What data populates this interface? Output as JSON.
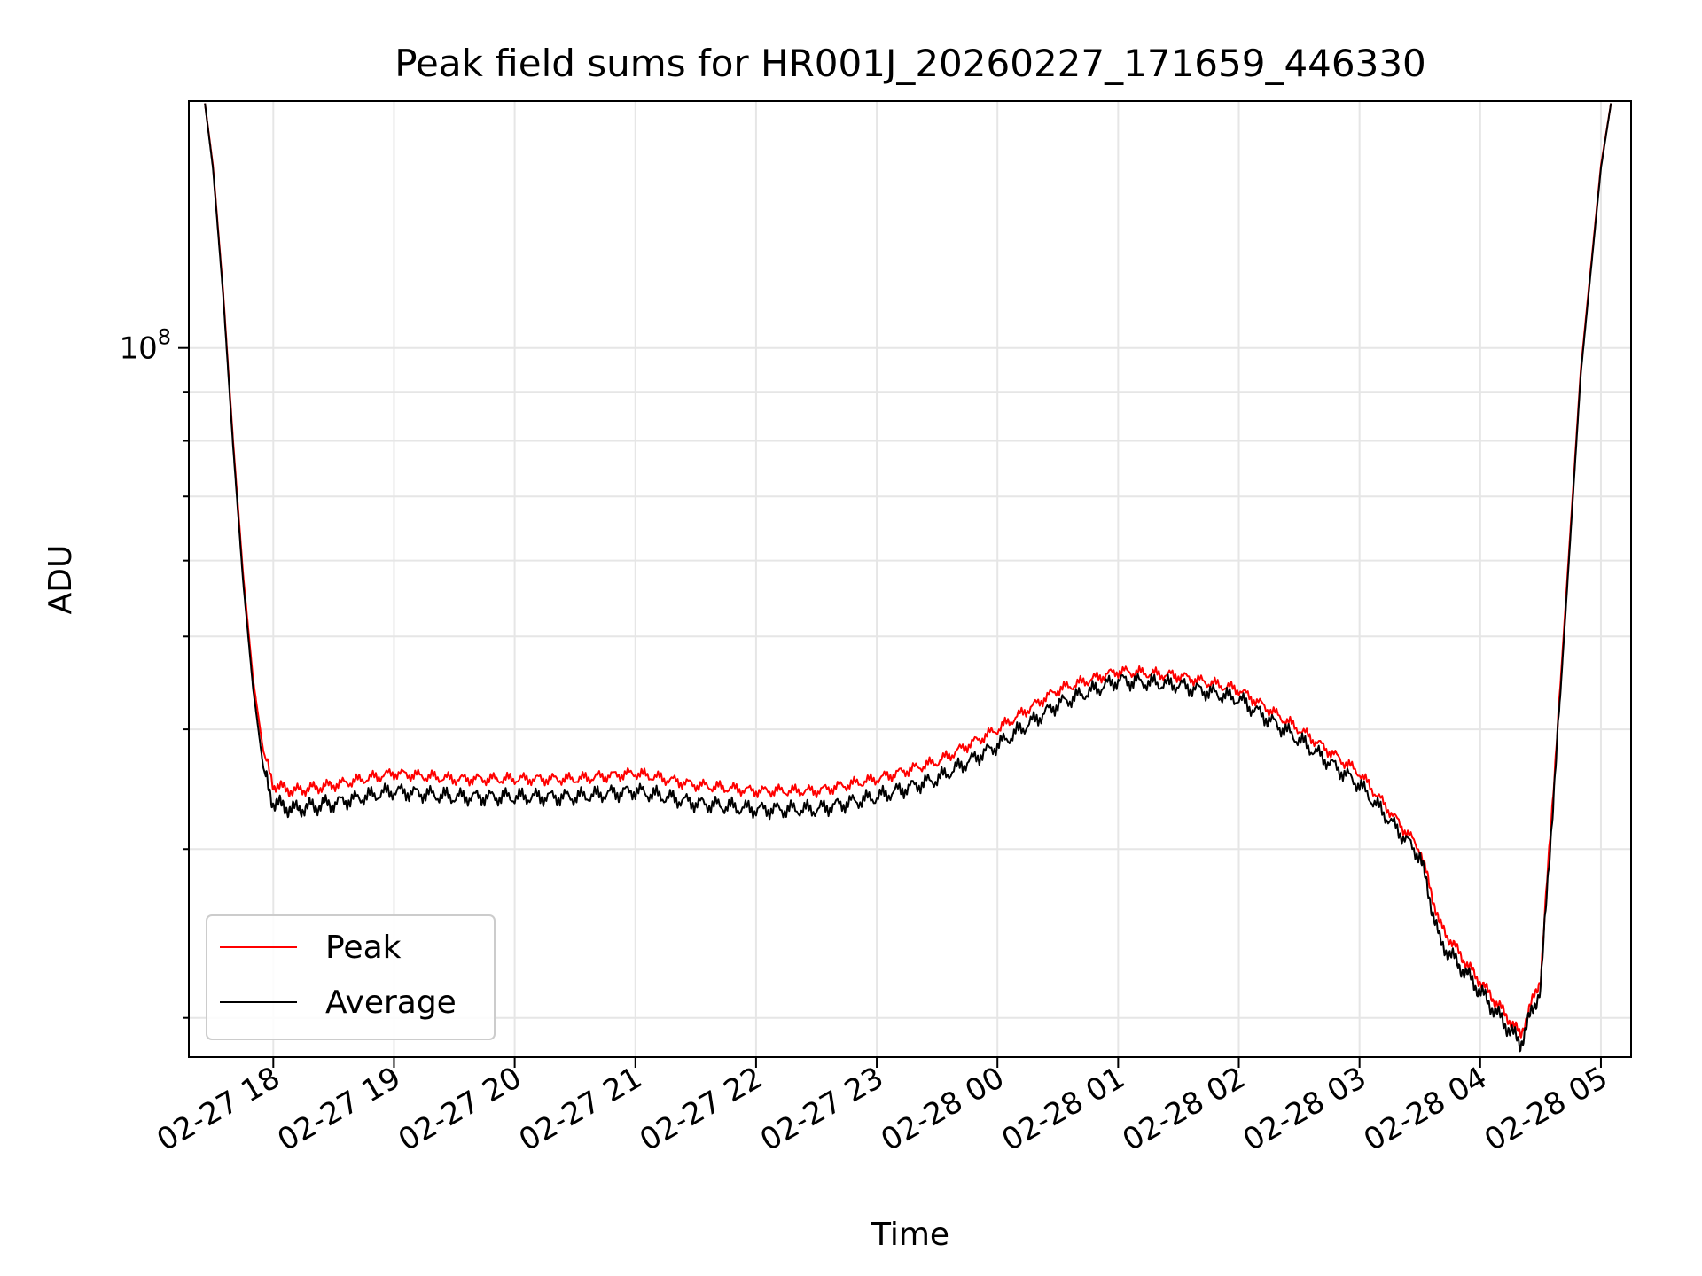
{
  "chart_data": {
    "type": "line",
    "title": "Peak field sums for HR001J_20260227_171659_446330",
    "xlabel": "Time",
    "ylabel": "ADU",
    "yscale": "log",
    "grid": true,
    "legend_position": "lower-left",
    "xlim": [
      "2026-02-27 17:18",
      "2026-02-28 05:15"
    ],
    "ylim": [
      18200000,
      181000000
    ],
    "x_ticks": [
      "02-27 18",
      "02-27 19",
      "02-27 20",
      "02-27 21",
      "02-27 22",
      "02-27 23",
      "02-28 00",
      "02-28 01",
      "02-28 02",
      "02-28 03",
      "02-28 04",
      "02-28 05"
    ],
    "y_tick_base": "10",
    "y_tick_exponent": "8",
    "series": [
      {
        "name": "Peak",
        "color": "#ff0000",
        "x": [
          "2026-02-27 17:26",
          "2026-02-27 17:30",
          "2026-02-27 17:35",
          "2026-02-27 17:40",
          "2026-02-27 17:45",
          "2026-02-27 17:50",
          "2026-02-27 17:55",
          "2026-02-27 18:00",
          "2026-02-27 18:10",
          "2026-02-27 18:30",
          "2026-02-27 19:00",
          "2026-02-27 19:30",
          "2026-02-27 20:00",
          "2026-02-27 20:30",
          "2026-02-27 21:00",
          "2026-02-27 21:30",
          "2026-02-27 22:00",
          "2026-02-27 22:30",
          "2026-02-27 23:00",
          "2026-02-27 23:30",
          "2026-02-28 00:00",
          "2026-02-28 00:30",
          "2026-02-28 01:00",
          "2026-02-28 01:30",
          "2026-02-28 02:00",
          "2026-02-28 02:30",
          "2026-02-28 03:00",
          "2026-02-28 03:30",
          "2026-02-28 03:40",
          "2026-02-28 03:55",
          "2026-02-28 04:10",
          "2026-02-28 04:20",
          "2026-02-28 04:30",
          "2026-02-28 04:40",
          "2026-02-28 04:50",
          "2026-02-28 05:00",
          "2026-02-28 05:05"
        ],
        "y": [
          180000000,
          155000000,
          115000000,
          80000000,
          58000000,
          45000000,
          38000000,
          35000000,
          34500000,
          35000000,
          36000000,
          35500000,
          35500000,
          35500000,
          36000000,
          35000000,
          34500000,
          34500000,
          35500000,
          37000000,
          40000000,
          44000000,
          46000000,
          45500000,
          44000000,
          40000000,
          36000000,
          30000000,
          25000000,
          22500000,
          20500000,
          19200000,
          22000000,
          45000000,
          95000000,
          155000000,
          180000000
        ]
      },
      {
        "name": "Average",
        "color": "#000000",
        "x": [
          "2026-02-27 17:26",
          "2026-02-27 17:30",
          "2026-02-27 17:35",
          "2026-02-27 17:40",
          "2026-02-27 17:45",
          "2026-02-27 17:50",
          "2026-02-27 17:55",
          "2026-02-27 18:00",
          "2026-02-27 18:10",
          "2026-02-27 18:30",
          "2026-02-27 19:00",
          "2026-02-27 19:30",
          "2026-02-27 20:00",
          "2026-02-27 20:30",
          "2026-02-27 21:00",
          "2026-02-27 21:30",
          "2026-02-27 22:00",
          "2026-02-27 22:30",
          "2026-02-27 23:00",
          "2026-02-27 23:30",
          "2026-02-28 00:00",
          "2026-02-28 00:30",
          "2026-02-28 01:00",
          "2026-02-28 01:30",
          "2026-02-28 02:00",
          "2026-02-28 02:30",
          "2026-02-28 03:00",
          "2026-02-28 03:30",
          "2026-02-28 03:40",
          "2026-02-28 03:55",
          "2026-02-28 04:10",
          "2026-02-28 04:20",
          "2026-02-28 04:30",
          "2026-02-28 04:40",
          "2026-02-28 04:50",
          "2026-02-28 05:00",
          "2026-02-28 05:05"
        ],
        "y": [
          180000000,
          154000000,
          114000000,
          79000000,
          57000000,
          44000000,
          36500000,
          33500000,
          33000000,
          33500000,
          34500000,
          34000000,
          34000000,
          34000000,
          34500000,
          33500000,
          33000000,
          33000000,
          34000000,
          35500000,
          38500000,
          42500000,
          45000000,
          44500000,
          43000000,
          39000000,
          35000000,
          29500000,
          24000000,
          22000000,
          20000000,
          18800000,
          21500000,
          44000000,
          94000000,
          154000000,
          180000000
        ]
      }
    ]
  }
}
